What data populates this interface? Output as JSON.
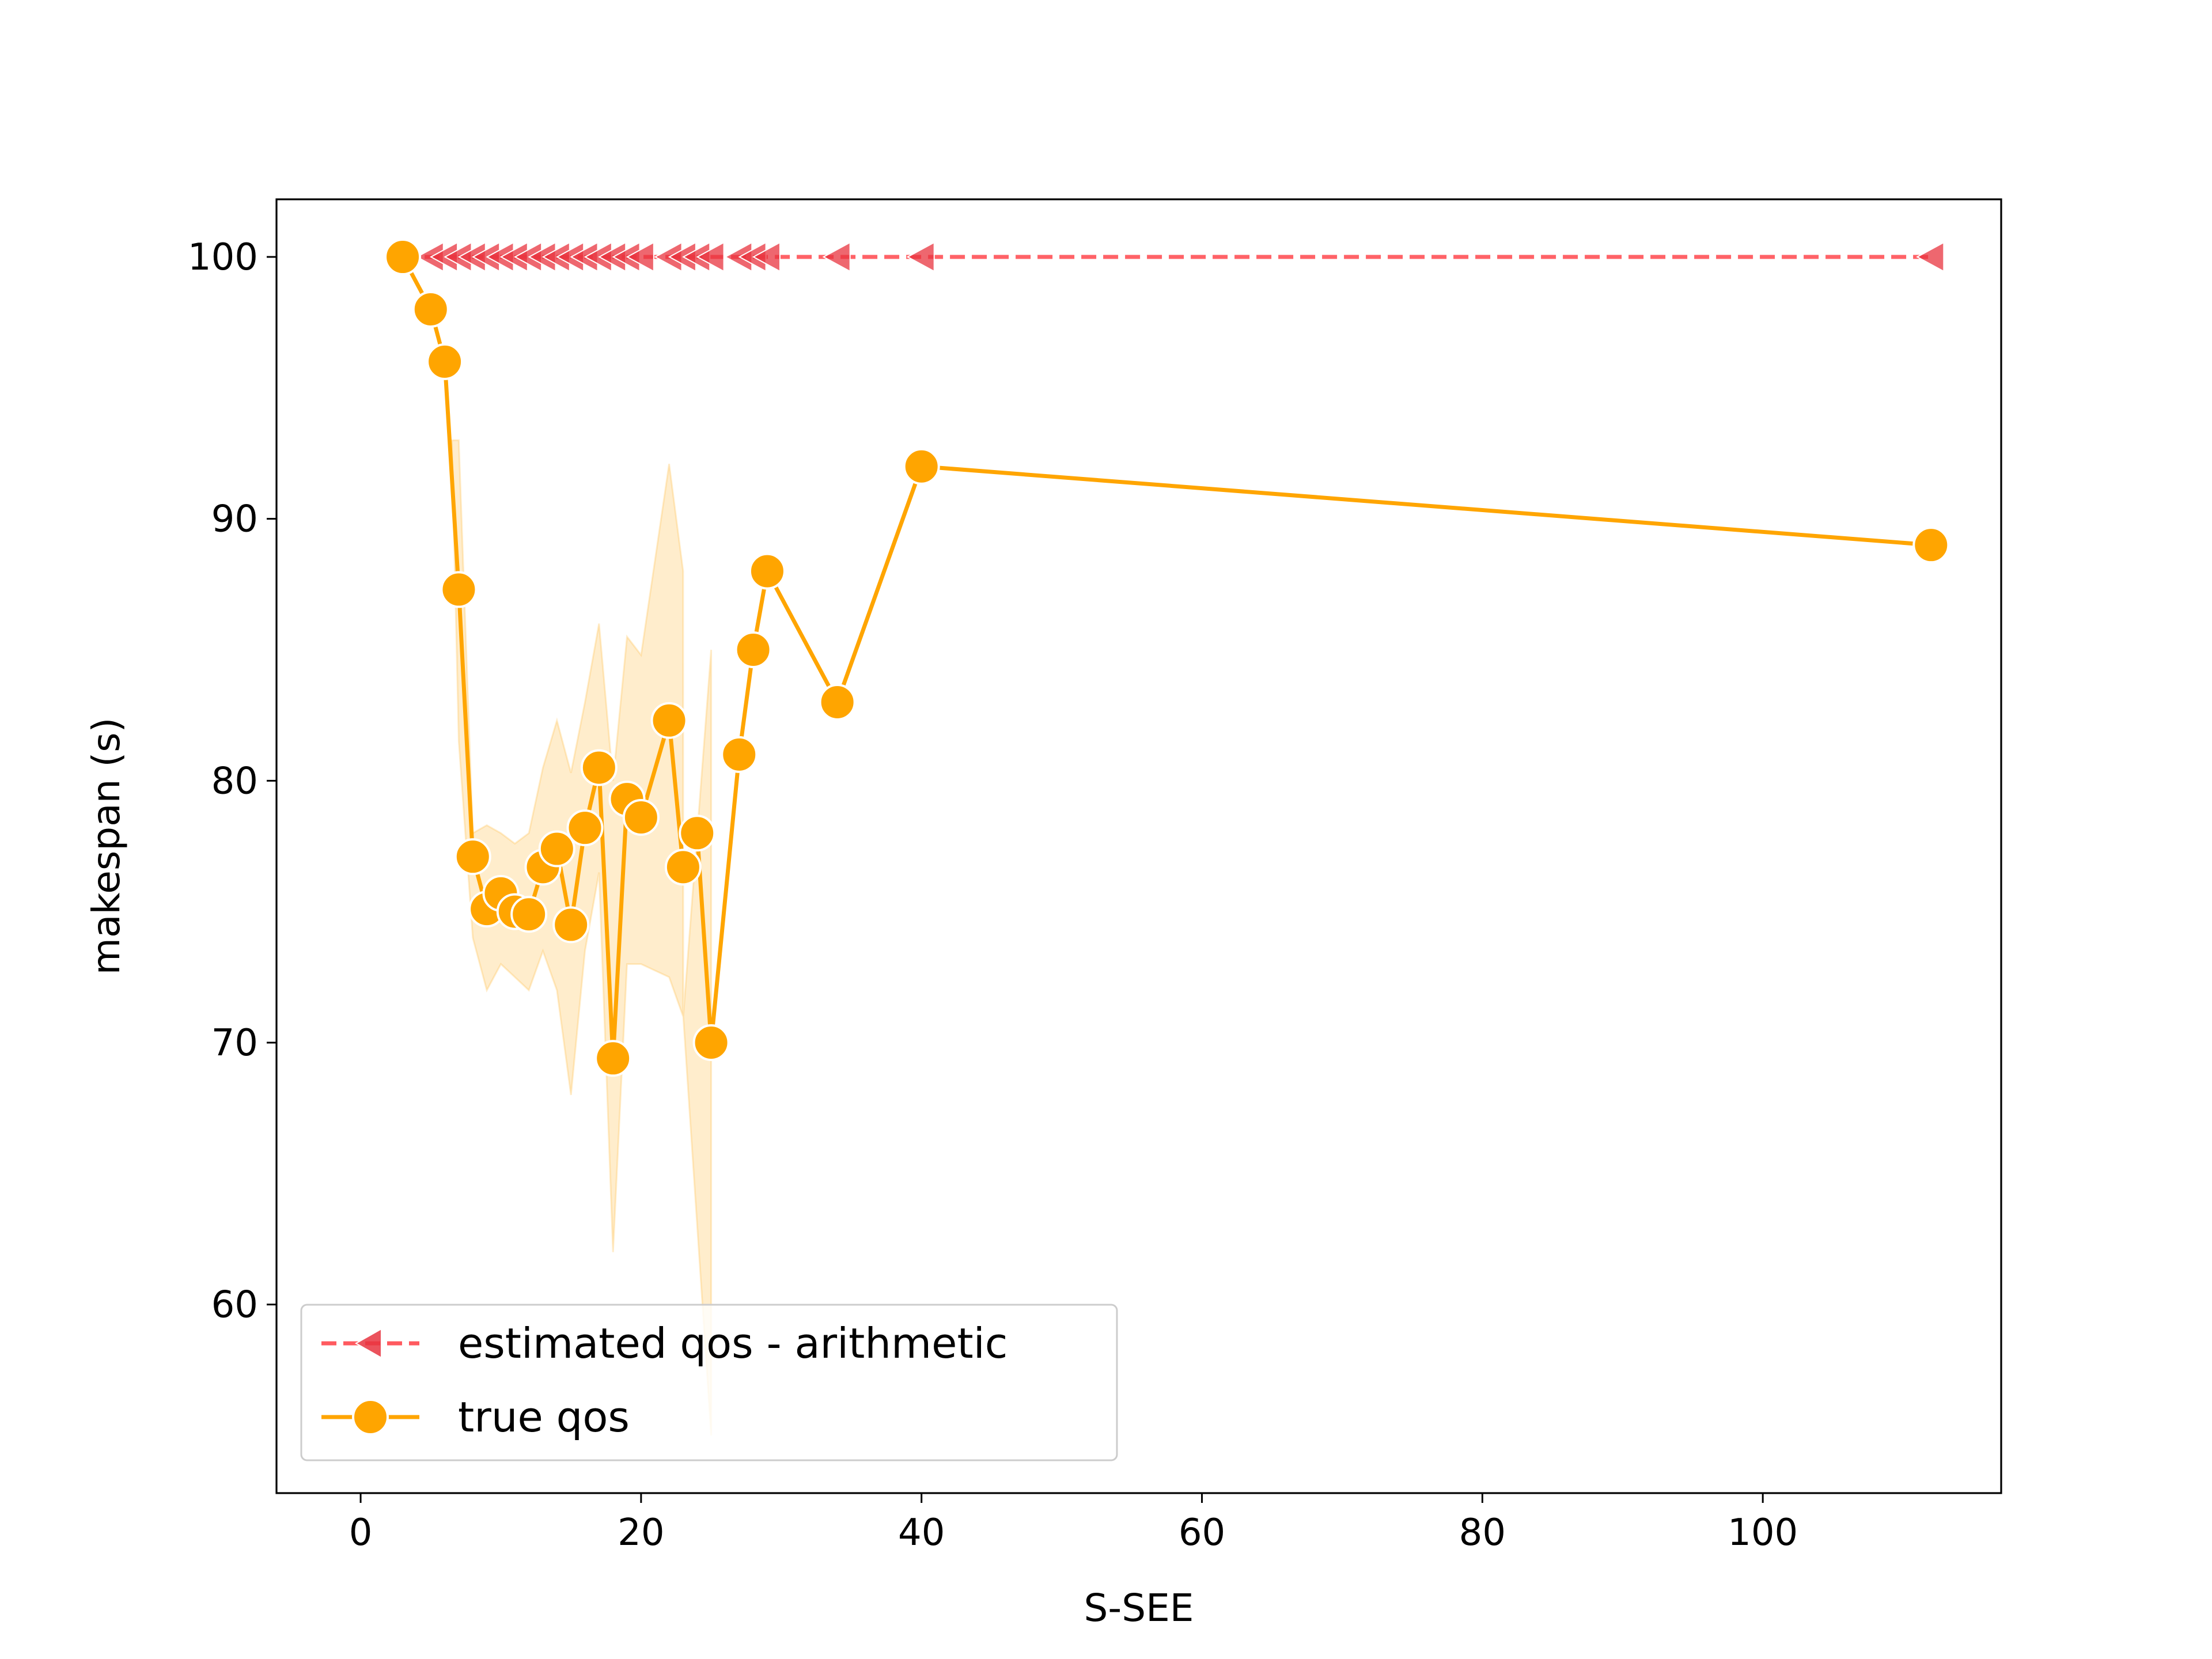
{
  "chart_data": {
    "type": "line",
    "title": "",
    "xlabel": "S-SEE",
    "ylabel": "makespan (s)",
    "xlim": [
      -6,
      117
    ],
    "ylim": [
      52.8,
      102.2
    ],
    "xticks": [
      0,
      20,
      40,
      60,
      80,
      100
    ],
    "yticks": [
      60,
      70,
      80,
      90,
      100
    ],
    "grid": false,
    "legend_position": "lower-left",
    "series": [
      {
        "name": "estimated qos - arithmetic",
        "color": "#ff5a5f",
        "style": "dashed",
        "marker": "left-triangle",
        "points": [
          [
            3,
            100
          ],
          [
            5,
            100
          ],
          [
            6,
            100
          ],
          [
            7,
            100
          ],
          [
            8,
            100
          ],
          [
            9,
            100
          ],
          [
            10,
            100
          ],
          [
            11,
            100
          ],
          [
            12,
            100
          ],
          [
            13,
            100
          ],
          [
            14,
            100
          ],
          [
            15,
            100
          ],
          [
            16,
            100
          ],
          [
            17,
            100
          ],
          [
            18,
            100
          ],
          [
            19,
            100
          ],
          [
            20,
            100
          ],
          [
            22,
            100
          ],
          [
            23,
            100
          ],
          [
            24,
            100
          ],
          [
            25,
            100
          ],
          [
            27,
            100
          ],
          [
            28,
            100
          ],
          [
            29,
            100
          ],
          [
            34,
            100
          ],
          [
            40,
            100
          ],
          [
            112,
            100
          ]
        ]
      },
      {
        "name": "true qos",
        "color": "#ffa500",
        "style": "solid",
        "marker": "circle",
        "points": [
          [
            3,
            100
          ],
          [
            5,
            98
          ],
          [
            6,
            96
          ],
          [
            7,
            87.3
          ],
          [
            8,
            77.1
          ],
          [
            9,
            75.1
          ],
          [
            10,
            75.7
          ],
          [
            11,
            75
          ],
          [
            12,
            74.9
          ],
          [
            13,
            76.7
          ],
          [
            14,
            77.4
          ],
          [
            15,
            74.5
          ],
          [
            16,
            78.2
          ],
          [
            17,
            80.5
          ],
          [
            18,
            69.4
          ],
          [
            19,
            79.3
          ],
          [
            20,
            78.6
          ],
          [
            22,
            82.3
          ],
          [
            23,
            76.7
          ],
          [
            24,
            78
          ],
          [
            25,
            70
          ],
          [
            27,
            81
          ],
          [
            28,
            85
          ],
          [
            29,
            88
          ],
          [
            34,
            83
          ],
          [
            40,
            92
          ],
          [
            112,
            89
          ]
        ],
        "confidence_band": [
          [
            6.5,
            93.0,
            93.0
          ],
          [
            7,
            81.5,
            93.0
          ],
          [
            8,
            74.0,
            78.0
          ],
          [
            9,
            72.0,
            78.3
          ],
          [
            10,
            73.0,
            78.0
          ],
          [
            11,
            72.5,
            77.6
          ],
          [
            12,
            72.0,
            78.0
          ],
          [
            13,
            73.5,
            80.5
          ],
          [
            14,
            72.0,
            82.3
          ],
          [
            15,
            68.0,
            80.3
          ],
          [
            16,
            73.5,
            83.0
          ],
          [
            17,
            76.5,
            86.0
          ],
          [
            18,
            62.0,
            80.0
          ],
          [
            19,
            73.0,
            85.5
          ],
          [
            20,
            73.0,
            84.8
          ],
          [
            22,
            72.5,
            92.1
          ],
          [
            23,
            71.0,
            88.0
          ],
          [
            23.01,
            71.0,
            71.0
          ],
          [
            25,
            55.0,
            85.0
          ]
        ]
      }
    ]
  }
}
